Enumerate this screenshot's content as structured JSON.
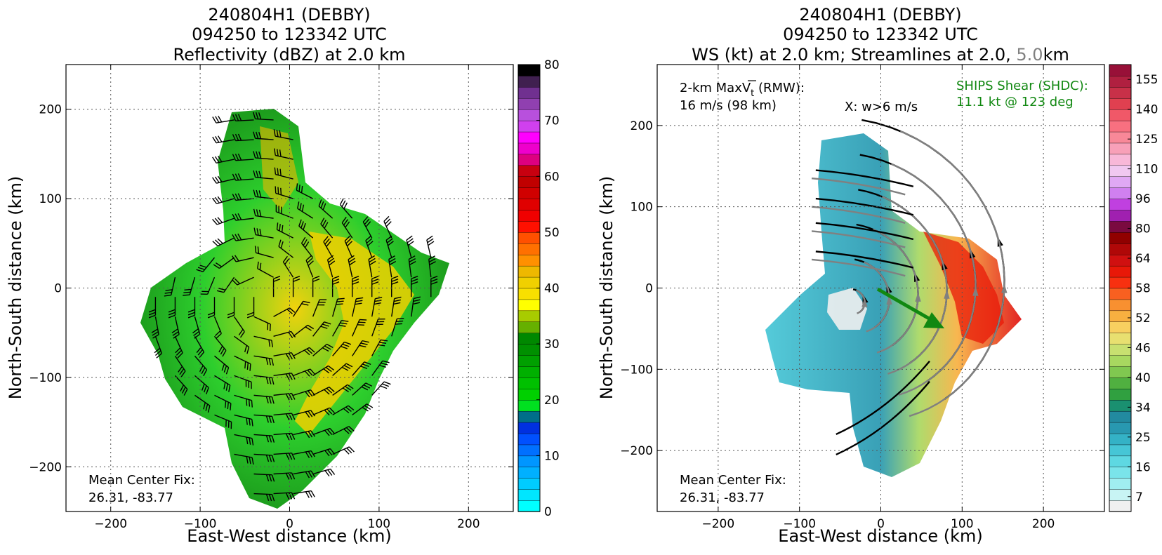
{
  "colors": {
    "barb": "#000000",
    "streamline_low": "#000000",
    "streamline_high": "#808080",
    "shear_vector": "#118811",
    "shear_text": "#118811"
  },
  "chart_data": [
    {
      "type": "heatmap",
      "title": [
        "240804H1 (DEBBY)",
        "094250 to 123342 UTC",
        "Reflectivity (dBZ) at 2.0 km"
      ],
      "xlabel": "East-West distance (km)",
      "ylabel": "North-South distance (km)",
      "xlim": [
        -250,
        250
      ],
      "ylim": [
        -250,
        250
      ],
      "xticks": [
        -200,
        -100,
        0,
        100,
        200
      ],
      "yticks": [
        -200,
        -100,
        0,
        100,
        200
      ],
      "xtick_labels": [
        "−200",
        "−100",
        "0",
        "100",
        "200"
      ],
      "ytick_labels": [
        "−200",
        "−100",
        "0",
        "100",
        "200"
      ],
      "grid": true,
      "annotations": [
        {
          "id": "center-fix",
          "lines": [
            "Mean Center Fix:",
            "26.31, -83.77"
          ],
          "position": "bottom-left"
        }
      ],
      "colorbar": {
        "min": 0,
        "max": 80,
        "ticks": [
          0,
          10,
          20,
          30,
          40,
          50,
          60,
          70,
          80
        ],
        "tick_labels": [
          "0",
          "10",
          "20",
          "30",
          "40",
          "50",
          "60",
          "70",
          "80"
        ],
        "colors": [
          "#00ffff",
          "#00e6ff",
          "#00ccff",
          "#00b0ff",
          "#0096ff",
          "#0070ff",
          "#0050ff",
          "#0030e0",
          "#006e8a",
          "#00e020",
          "#00d000",
          "#00c000",
          "#00b000",
          "#00a000",
          "#009000",
          "#008800",
          "#66b000",
          "#a8cc00",
          "#ffff00",
          "#f8e000",
          "#f0d000",
          "#eeb800",
          "#ff9000",
          "#ff7000",
          "#ff5000",
          "#ff1000",
          "#f00000",
          "#e00000",
          "#d00000",
          "#c00000",
          "#c80010",
          "#dd0080",
          "#ee00cc",
          "#ff00ff",
          "#d040ee",
          "#b850dd",
          "#9040b0",
          "#703090",
          "#402050",
          "#000000"
        ]
      },
      "wind_barbs": true,
      "center_approx": [
        -30,
        -10
      ],
      "echo_coverage": "blob covering roughly -140 to 190 km E-W, -240 to 200 km N-S"
    },
    {
      "type": "heatmap",
      "title": [
        "240804H1 (DEBBY)",
        "094250 to 123342 UTC",
        "WS (kt) at 2.0 km; Streamlines at 2.0, ",
        "5.0",
        "km"
      ],
      "xlabel": "East-West distance (km)",
      "ylabel": "North-South distance (km)",
      "xlim": [
        -275,
        275
      ],
      "ylim": [
        -275,
        275
      ],
      "xticks": [
        -200,
        -100,
        0,
        100,
        200
      ],
      "yticks": [
        -200,
        -100,
        0,
        100,
        200
      ],
      "xtick_labels": [
        "−200",
        "−100",
        "0",
        "100",
        "200"
      ],
      "ytick_labels": [
        "−200",
        "−100",
        "0",
        "100",
        "200"
      ],
      "grid": true,
      "annotations": [
        {
          "id": "max-vt",
          "lines": [
            "2-km MaxV",
            "t",
            " (RMW):",
            "16 m/s (98 km)"
          ],
          "position": "top-left"
        },
        {
          "id": "w-marker",
          "lines": [
            "X: w>6 m/s"
          ],
          "position": "top-center"
        },
        {
          "id": "ships-shear",
          "lines": [
            "SHIPS Shear (SHDC):",
            "11.1 kt @ 123 deg"
          ],
          "position": "top-right"
        },
        {
          "id": "center-fix",
          "lines": [
            "Mean Center Fix:",
            "26.31, -83.77"
          ],
          "position": "bottom-left"
        }
      ],
      "shear": {
        "speed_kt": 11.1,
        "direction_deg": 123
      },
      "colorbar": {
        "min": 0,
        "max": 160,
        "tick_values": [
          7,
          16,
          25,
          34,
          40,
          46,
          52,
          58,
          64,
          80,
          96,
          110,
          125,
          140,
          155
        ],
        "tick_labels": [
          "7",
          "16",
          "25",
          "34",
          "40",
          "46",
          "52",
          "58",
          "64",
          "80",
          "96",
          "110",
          "125",
          "140",
          "155"
        ],
        "colors": [
          "#f0f0f0",
          "#c8f4f4",
          "#a0eef0",
          "#7ae4ea",
          "#5ed8e2",
          "#46c6d6",
          "#34b2c6",
          "#2898b0",
          "#228aa0",
          "#1a9070",
          "#30a040",
          "#50b040",
          "#80c850",
          "#a8d860",
          "#c8e070",
          "#e8e070",
          "#f8d060",
          "#f8b040",
          "#f89030",
          "#f86020",
          "#f83010",
          "#e81808",
          "#d01010",
          "#b00808",
          "#900000",
          "#7a0a40",
          "#a020b0",
          "#c040e0",
          "#d080f0",
          "#e0a8f4",
          "#f0c8f0",
          "#f8b8d8",
          "#f8a0b8",
          "#f88898",
          "#f87080",
          "#f05868",
          "#e04050",
          "#c83048",
          "#b02040",
          "#981038"
        ]
      },
      "streamlines": true,
      "center_approx": [
        -35,
        -20
      ],
      "echo_coverage": "ring-shaped pattern covering roughly -150 to 175 km E-W, -225 to 195 km N-S"
    }
  ]
}
